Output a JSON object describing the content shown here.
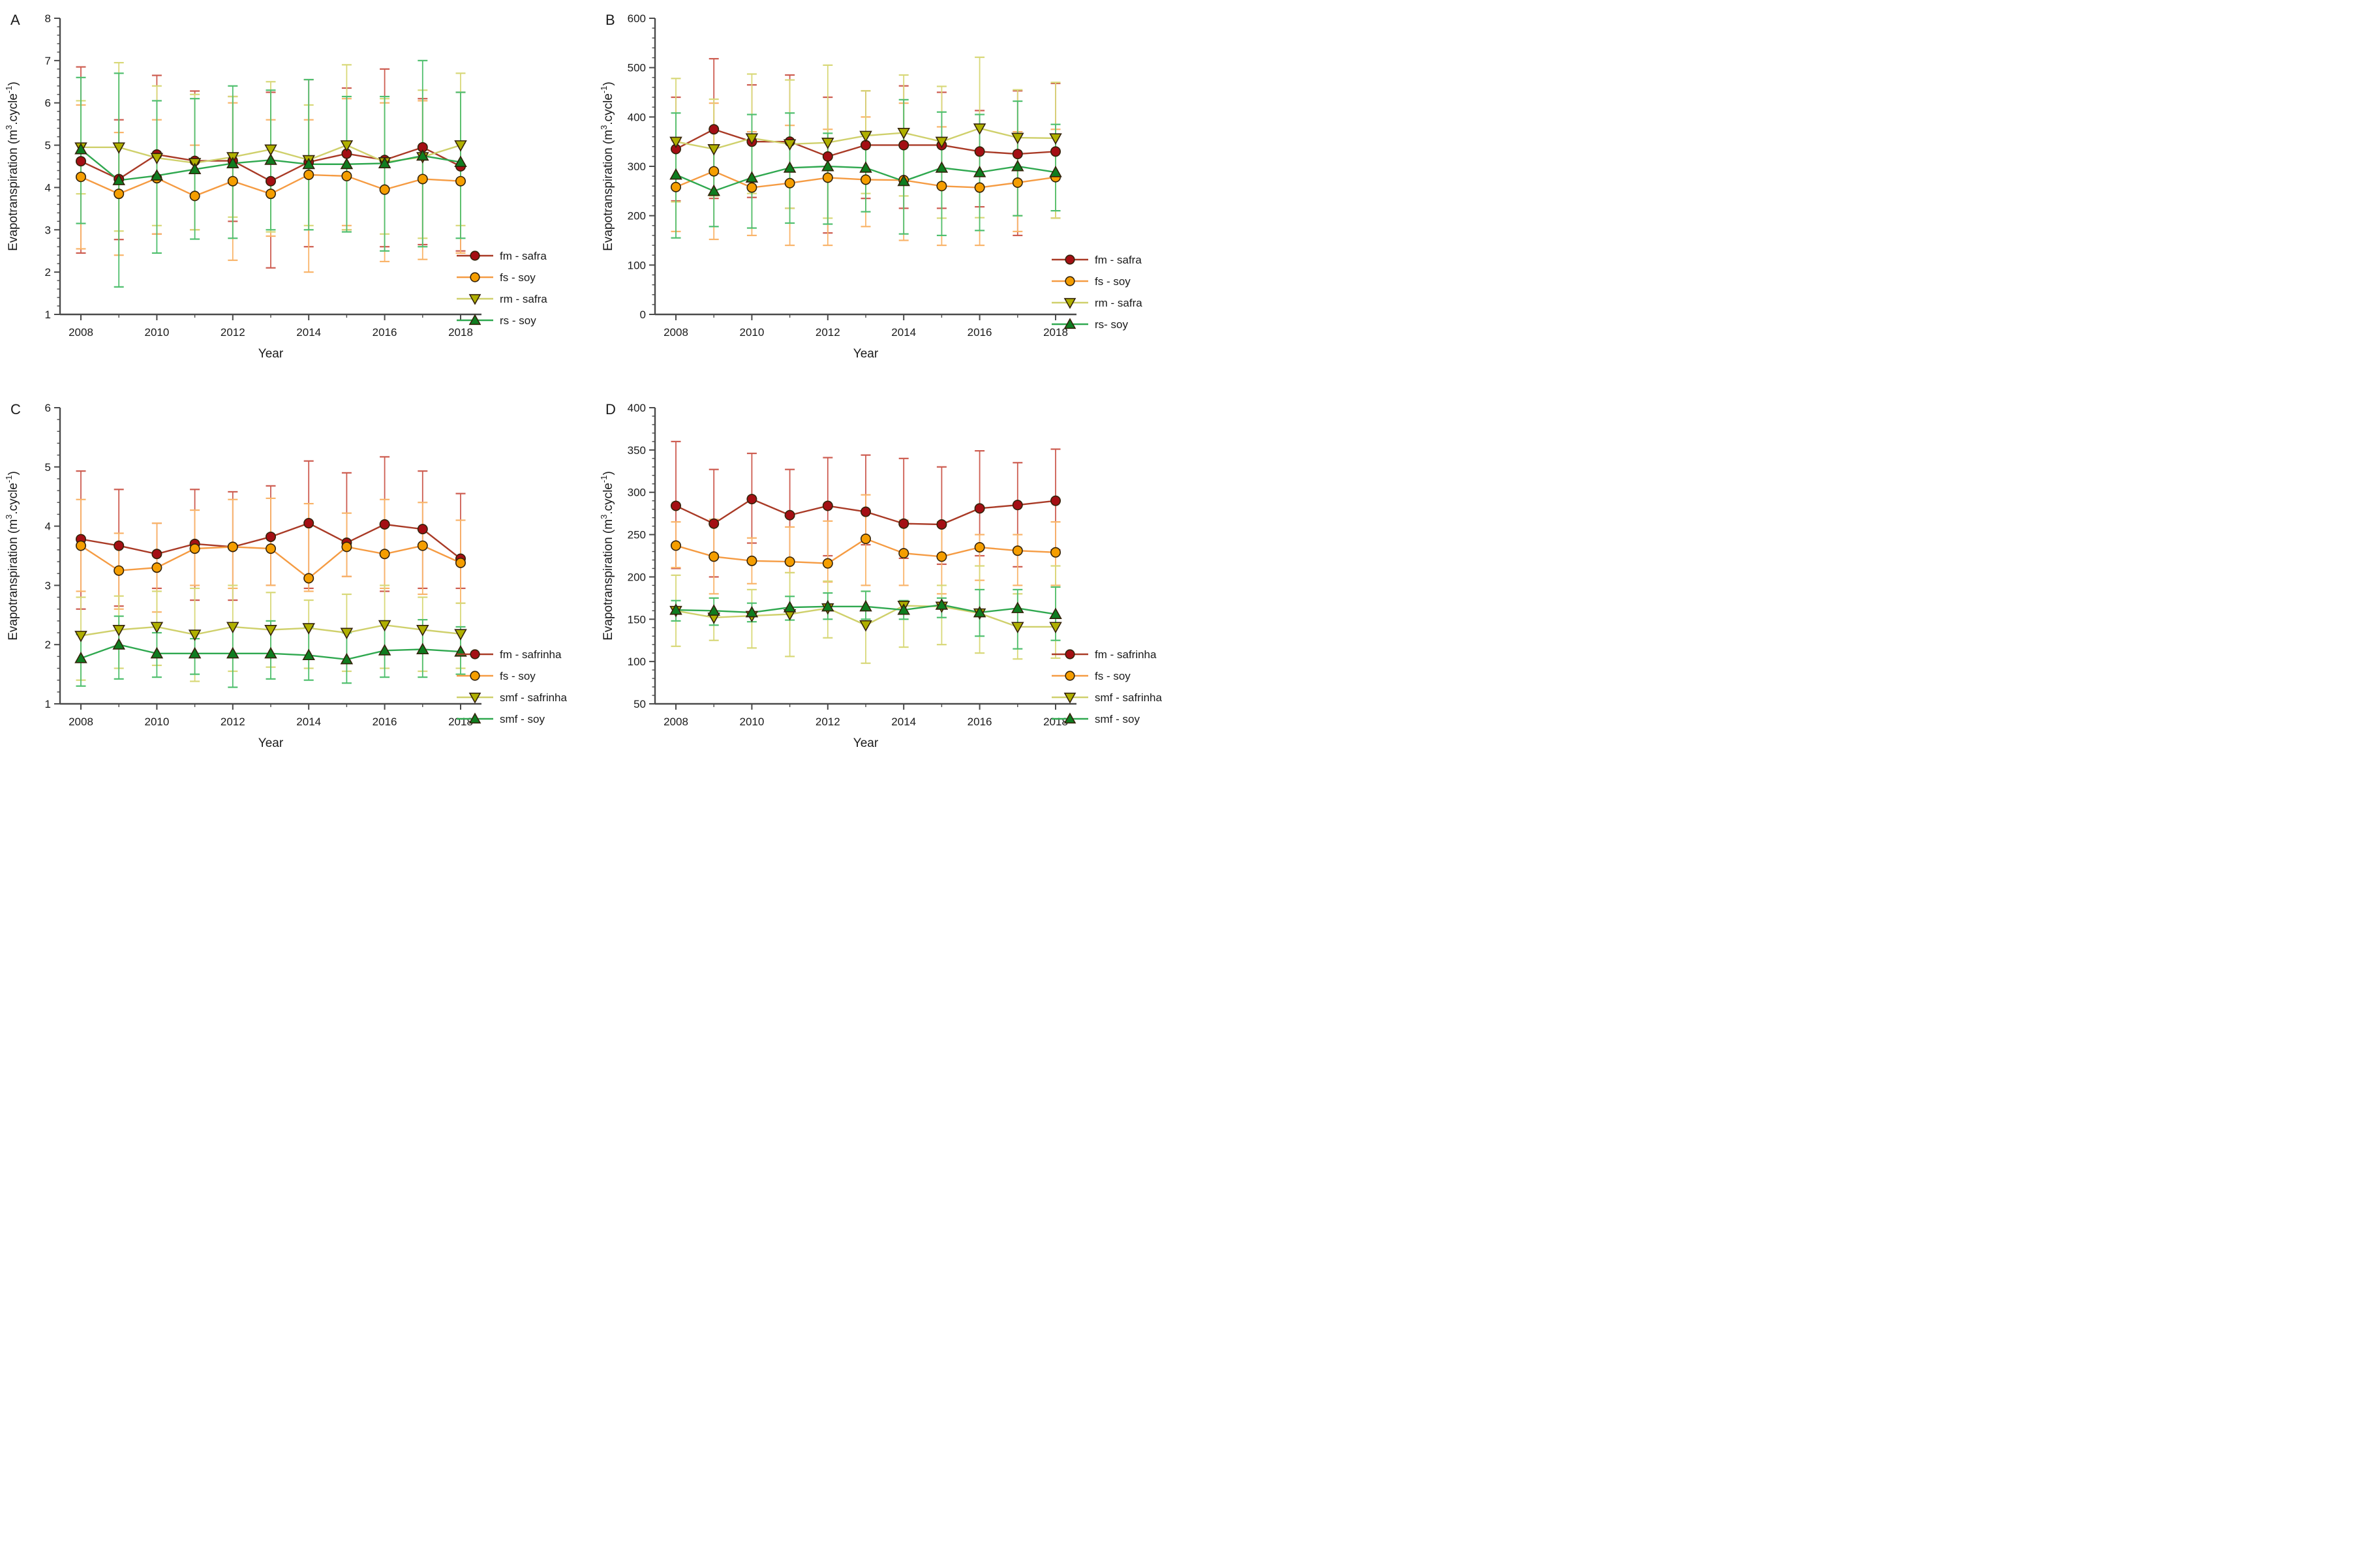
{
  "figure_background": "#ffffff",
  "marker_outline_color": "#33220a",
  "axis_color": "#4a4a4a",
  "text_color": "#1a1a1a",
  "chart_data": [
    {
      "type": "line",
      "label": "A",
      "xlabel": "Year",
      "ylabel": "Evapotranspiration (m3.cycle-1)",
      "ylabel_parts": [
        {
          "t": "Evapotranspiration (m"
        },
        {
          "t": "3",
          "sup": true
        },
        {
          "t": ".cycle"
        },
        {
          "t": "-1",
          "sup": true
        },
        {
          "t": ")"
        }
      ],
      "ylim": [
        1,
        8
      ],
      "ytick_values": [
        1,
        2,
        3,
        4,
        5,
        6,
        7,
        8
      ],
      "yminor_step": 0.2,
      "x": [
        2008,
        2009,
        2010,
        2011,
        2012,
        2013,
        2014,
        2015,
        2016,
        2017,
        2018
      ],
      "xtick_labels": [
        "2008",
        "2010",
        "2012",
        "2014",
        "2016",
        "2018"
      ],
      "xtick_values": [
        2008,
        2010,
        2012,
        2014,
        2016,
        2018
      ],
      "legend_position": "right",
      "grid": false,
      "series": [
        {
          "name": "fm - safra",
          "marker": "circle",
          "line_color": "#a93a26",
          "err_color": "#cd5c50",
          "marker_color": "#a40f14",
          "values": [
            4.62,
            4.2,
            4.78,
            4.63,
            4.63,
            4.15,
            4.6,
            4.8,
            4.65,
            4.95,
            4.5
          ],
          "err_hi": [
            6.85,
            5.6,
            6.65,
            6.28,
            6.15,
            6.25,
            6.55,
            6.35,
            6.8,
            6.1,
            6.25
          ],
          "err_lo": [
            2.45,
            2.77,
            2.9,
            3.0,
            3.2,
            2.1,
            2.6,
            3.0,
            2.6,
            2.65,
            2.5
          ]
        },
        {
          "name": "fs - soy",
          "marker": "circle",
          "line_color": "#f59b42",
          "err_color": "#f9b46a",
          "marker_color": "#f59e00",
          "values": [
            4.25,
            3.85,
            4.22,
            3.8,
            4.15,
            3.85,
            4.3,
            4.27,
            3.95,
            4.2,
            4.15
          ],
          "err_hi": [
            5.95,
            5.3,
            5.6,
            5.0,
            6.0,
            5.6,
            5.6,
            6.1,
            6.0,
            6.05,
            5.05
          ],
          "err_lo": [
            2.55,
            2.4,
            2.9,
            3.0,
            2.28,
            2.85,
            2.0,
            3.1,
            2.25,
            2.3,
            2.45
          ]
        },
        {
          "name": "rm - safra",
          "marker": "triangle-down",
          "line_color": "#cfd06b",
          "err_color": "#d8d878",
          "marker_color": "#b0b000",
          "values": [
            4.95,
            4.95,
            4.7,
            4.58,
            4.72,
            4.9,
            4.65,
            5.0,
            4.6,
            4.72,
            5.0
          ],
          "err_hi": [
            6.05,
            6.95,
            6.4,
            6.2,
            6.15,
            6.5,
            5.95,
            6.9,
            6.1,
            6.3,
            6.7
          ],
          "err_lo": [
            3.85,
            2.97,
            3.1,
            3.0,
            3.3,
            2.95,
            3.1,
            3.0,
            2.9,
            2.8,
            3.1
          ]
        },
        {
          "name": "rs - soy",
          "marker": "triangle-up",
          "line_color": "#2fa84f",
          "err_color": "#4fbf6e",
          "marker_color": "#0f7d20",
          "values": [
            4.9,
            4.17,
            4.28,
            4.43,
            4.57,
            4.65,
            4.55,
            4.55,
            4.57,
            4.75,
            4.6
          ],
          "err_hi": [
            6.6,
            6.7,
            6.05,
            6.1,
            6.4,
            6.3,
            6.55,
            6.15,
            6.15,
            7.0,
            6.25
          ],
          "err_lo": [
            3.15,
            1.65,
            2.45,
            2.78,
            2.8,
            3.0,
            3.0,
            2.95,
            2.5,
            2.6,
            2.8
          ]
        }
      ]
    },
    {
      "type": "line",
      "label": "B",
      "xlabel": "Year",
      "ylabel": "Evapotranspiration (m3.cycle-1)",
      "ylabel_parts": [
        {
          "t": "Evapotranspiration (m"
        },
        {
          "t": "3",
          "sup": true
        },
        {
          "t": ".cycle"
        },
        {
          "t": "-1",
          "sup": true
        },
        {
          "t": ")"
        }
      ],
      "ylim": [
        0,
        600
      ],
      "ytick_values": [
        0,
        100,
        200,
        300,
        400,
        500,
        600
      ],
      "yminor_step": 20,
      "x": [
        2008,
        2009,
        2010,
        2011,
        2012,
        2013,
        2014,
        2015,
        2016,
        2017,
        2018
      ],
      "xtick_labels": [
        "2008",
        "2010",
        "2012",
        "2014",
        "2016",
        "2018"
      ],
      "xtick_values": [
        2008,
        2010,
        2012,
        2014,
        2016,
        2018
      ],
      "legend_position": "right",
      "grid": false,
      "series": [
        {
          "name": "fm - safra",
          "marker": "circle",
          "line_color": "#a93a26",
          "err_color": "#cd5c50",
          "marker_color": "#a40f14",
          "values": [
            335,
            375,
            350,
            350,
            320,
            343,
            343,
            343,
            330,
            325,
            330
          ],
          "err_hi": [
            440,
            518,
            465,
            485,
            440,
            453,
            463,
            450,
            413,
            453,
            468
          ],
          "err_lo": [
            230,
            235,
            237,
            215,
            165,
            235,
            215,
            215,
            218,
            160,
            195
          ]
        },
        {
          "name": "fs - soy",
          "marker": "circle",
          "line_color": "#f59b42",
          "err_color": "#f9b46a",
          "marker_color": "#f59e00",
          "values": [
            258,
            290,
            257,
            266,
            277,
            273,
            272,
            260,
            257,
            267,
            278
          ],
          "err_hi": [
            352,
            428,
            370,
            383,
            375,
            400,
            428,
            380,
            383,
            370,
            375
          ],
          "err_lo": [
            168,
            152,
            160,
            140,
            140,
            178,
            150,
            140,
            140,
            168,
            195
          ]
        },
        {
          "name": "rm - safra",
          "marker": "triangle-down",
          "line_color": "#cfd06b",
          "err_color": "#d8d878",
          "marker_color": "#b0b000",
          "values": [
            350,
            335,
            357,
            345,
            348,
            362,
            368,
            350,
            377,
            358,
            357
          ],
          "err_hi": [
            478,
            436,
            487,
            475,
            505,
            453,
            485,
            462,
            521,
            455,
            470
          ],
          "err_lo": [
            228,
            240,
            245,
            215,
            195,
            245,
            240,
            195,
            196,
            200,
            195
          ]
        },
        {
          "name": "rs- soy",
          "marker": "triangle-up",
          "line_color": "#2fa84f",
          "err_color": "#4fbf6e",
          "marker_color": "#0f7d20",
          "values": [
            283,
            250,
            277,
            297,
            300,
            297,
            270,
            297,
            288,
            300,
            288
          ],
          "err_hi": [
            408,
            338,
            405,
            408,
            367,
            365,
            435,
            410,
            405,
            432,
            385
          ],
          "err_lo": [
            155,
            178,
            175,
            185,
            183,
            208,
            163,
            160,
            170,
            200,
            210
          ]
        }
      ]
    },
    {
      "type": "line",
      "label": "C",
      "xlabel": "Year",
      "ylabel": "Evapotranspiration (m3.cycle-1)",
      "ylabel_parts": [
        {
          "t": "Evapotranspiration (m"
        },
        {
          "t": "3",
          "sup": true
        },
        {
          "t": ".cycle"
        },
        {
          "t": "-1",
          "sup": true
        },
        {
          "t": ")"
        }
      ],
      "ylim": [
        1,
        6
      ],
      "ytick_values": [
        1,
        2,
        3,
        4,
        5,
        6
      ],
      "yminor_step": 0.2,
      "x": [
        2008,
        2009,
        2010,
        2011,
        2012,
        2013,
        2014,
        2015,
        2016,
        2017,
        2018
      ],
      "xtick_labels": [
        "2008",
        "2010",
        "2012",
        "2014",
        "2016",
        "2018"
      ],
      "xtick_values": [
        2008,
        2010,
        2012,
        2014,
        2016,
        2018
      ],
      "legend_position": "right",
      "grid": false,
      "series": [
        {
          "name": "fm - safrinha",
          "marker": "circle",
          "line_color": "#a93a26",
          "err_color": "#cd5c50",
          "marker_color": "#a40f14",
          "values": [
            3.78,
            3.67,
            3.53,
            3.7,
            3.65,
            3.82,
            4.05,
            3.72,
            4.03,
            3.95,
            3.45
          ],
          "err_hi": [
            4.93,
            4.62,
            4.05,
            4.62,
            4.58,
            4.68,
            5.1,
            4.9,
            5.17,
            4.93,
            4.55
          ],
          "err_lo": [
            2.6,
            2.65,
            2.95,
            2.75,
            2.75,
            3.0,
            2.95,
            3.15,
            2.9,
            2.95,
            2.95
          ]
        },
        {
          "name": "fs - soy",
          "marker": "circle",
          "line_color": "#f59b42",
          "err_color": "#f9b46a",
          "marker_color": "#f59e00",
          "values": [
            3.67,
            3.25,
            3.3,
            3.62,
            3.65,
            3.62,
            3.12,
            3.65,
            3.53,
            3.67,
            3.38
          ],
          "err_hi": [
            4.45,
            3.88,
            4.05,
            4.27,
            4.45,
            4.47,
            4.38,
            4.22,
            4.45,
            4.4,
            4.1
          ],
          "err_lo": [
            2.9,
            2.6,
            2.55,
            3.0,
            2.95,
            3.0,
            2.9,
            3.15,
            2.95,
            2.85,
            2.7
          ]
        },
        {
          "name": "smf - safrinha",
          "marker": "triangle-down",
          "line_color": "#cfd06b",
          "err_color": "#d8d878",
          "marker_color": "#b0b000",
          "values": [
            2.15,
            2.25,
            2.3,
            2.17,
            2.3,
            2.25,
            2.28,
            2.2,
            2.33,
            2.25,
            2.18
          ],
          "err_hi": [
            2.8,
            2.82,
            2.9,
            2.95,
            3.0,
            2.88,
            2.75,
            2.85,
            3.0,
            2.8,
            2.7
          ],
          "err_lo": [
            1.4,
            1.6,
            1.65,
            1.38,
            1.55,
            1.62,
            1.6,
            1.55,
            1.6,
            1.55,
            1.6
          ]
        },
        {
          "name": "smf - soy",
          "marker": "triangle-up",
          "line_color": "#2fa84f",
          "err_color": "#4fbf6e",
          "marker_color": "#0f7d20",
          "values": [
            1.77,
            2.0,
            1.85,
            1.85,
            1.85,
            1.85,
            1.82,
            1.75,
            1.9,
            1.92,
            1.88
          ],
          "err_hi": [
            2.17,
            2.48,
            2.2,
            2.1,
            2.35,
            2.4,
            2.3,
            2.2,
            2.4,
            2.42,
            2.3
          ],
          "err_lo": [
            1.3,
            1.42,
            1.45,
            1.5,
            1.28,
            1.42,
            1.4,
            1.35,
            1.45,
            1.45,
            1.5
          ]
        }
      ]
    },
    {
      "type": "line",
      "label": "D",
      "xlabel": "Year",
      "ylabel": "Evapotranspiration (m3.cycle-1)",
      "ylabel_parts": [
        {
          "t": "Evapotranspiration (m"
        },
        {
          "t": "3",
          "sup": true
        },
        {
          "t": ".cycle"
        },
        {
          "t": "-1",
          "sup": true
        },
        {
          "t": ")"
        }
      ],
      "ylim": [
        50,
        400
      ],
      "ytick_values": [
        50,
        100,
        150,
        200,
        250,
        300,
        350,
        400
      ],
      "yminor_step": 10,
      "x": [
        2008,
        2009,
        2010,
        2011,
        2012,
        2013,
        2014,
        2015,
        2016,
        2017,
        2018
      ],
      "xtick_labels": [
        "2008",
        "2010",
        "2012",
        "2014",
        "2016",
        "2018"
      ],
      "xtick_values": [
        2008,
        2010,
        2012,
        2014,
        2016,
        2018
      ],
      "legend_position": "right",
      "grid": false,
      "series": [
        {
          "name": "fm - safrinha",
          "marker": "circle",
          "line_color": "#a93a26",
          "err_color": "#cd5c50",
          "marker_color": "#a40f14",
          "values": [
            284,
            263,
            292,
            273,
            284,
            277,
            263,
            262,
            281,
            285,
            290
          ],
          "err_hi": [
            360,
            327,
            346,
            327,
            341,
            344,
            340,
            330,
            349,
            335,
            351
          ],
          "err_lo": [
            210,
            200,
            240,
            218,
            225,
            238,
            222,
            215,
            225,
            212,
            232
          ]
        },
        {
          "name": "fs - soy",
          "marker": "circle",
          "line_color": "#f59b42",
          "err_color": "#f9b46a",
          "marker_color": "#f59e00",
          "values": [
            237,
            224,
            219,
            218,
            216,
            245,
            228,
            224,
            235,
            231,
            229
          ],
          "err_hi": [
            265,
            268,
            246,
            259,
            266,
            297,
            267,
            265,
            250,
            250,
            265
          ],
          "err_lo": [
            211,
            180,
            192,
            205,
            194,
            190,
            190,
            180,
            196,
            190,
            190
          ]
        },
        {
          "name": "smf - safrinha",
          "marker": "triangle-down",
          "line_color": "#cfd06b",
          "err_color": "#d8d878",
          "marker_color": "#b0b000",
          "values": [
            160,
            152,
            154,
            156,
            163,
            143,
            166,
            165,
            157,
            141,
            141
          ],
          "err_hi": [
            202,
            175,
            185,
            205,
            195,
            183,
            170,
            190,
            213,
            180,
            213
          ],
          "err_lo": [
            118,
            125,
            116,
            106,
            128,
            98,
            117,
            120,
            110,
            103,
            104
          ]
        },
        {
          "name": "smf - soy",
          "marker": "triangle-up",
          "line_color": "#2fa84f",
          "err_color": "#4fbf6e",
          "marker_color": "#0f7d20",
          "values": [
            161,
            160,
            158,
            164,
            165,
            165,
            161,
            167,
            158,
            163,
            156
          ],
          "err_hi": [
            172,
            175,
            169,
            177,
            181,
            183,
            172,
            175,
            185,
            185,
            188
          ],
          "err_lo": [
            148,
            143,
            147,
            149,
            150,
            150,
            150,
            152,
            130,
            115,
            125
          ]
        }
      ]
    }
  ]
}
